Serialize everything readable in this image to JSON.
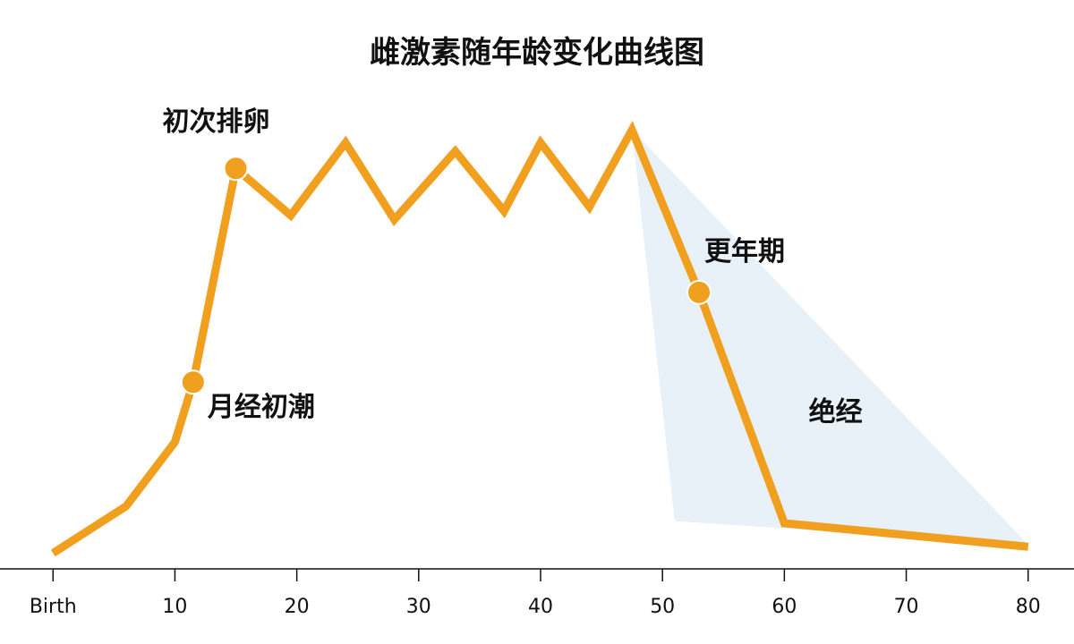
{
  "chart_data": {
    "type": "line",
    "title": "雌激素随年龄变化曲线图",
    "xlabel": "",
    "ylabel": "",
    "xlim": [
      -2,
      82
    ],
    "ylim": [
      0,
      100
    ],
    "x_ticks": [
      0,
      10,
      20,
      30,
      40,
      50,
      60,
      70,
      80
    ],
    "x_tick_labels": [
      "Birth",
      "10",
      "20",
      "30",
      "40",
      "50",
      "60",
      "70",
      "80"
    ],
    "grid": false,
    "series": [
      {
        "name": "",
        "color": "#F0A01E",
        "points": [
          {
            "x": 0,
            "y": 2
          },
          {
            "x": 6,
            "y": 13
          },
          {
            "x": 10,
            "y": 28
          },
          {
            "x": 11.5,
            "y": 42
          },
          {
            "x": 15,
            "y": 92
          },
          {
            "x": 19.5,
            "y": 81
          },
          {
            "x": 24,
            "y": 98
          },
          {
            "x": 28,
            "y": 80
          },
          {
            "x": 33,
            "y": 96
          },
          {
            "x": 37,
            "y": 82
          },
          {
            "x": 40,
            "y": 98
          },
          {
            "x": 44,
            "y": 83
          },
          {
            "x": 47.5,
            "y": 101
          },
          {
            "x": 53,
            "y": 63
          },
          {
            "x": 60,
            "y": 9
          },
          {
            "x": 80,
            "y": 3.5
          }
        ]
      }
    ],
    "shaded_region": {
      "color": "#E8F0F8",
      "points": [
        {
          "x": 47.5,
          "y": 101
        },
        {
          "x": 51,
          "y": 9.5
        },
        {
          "x": 80,
          "y": 4
        }
      ]
    },
    "markers": [
      {
        "x": 11.5,
        "y": 42,
        "label": "月经初潮",
        "label_side": "lower-right"
      },
      {
        "x": 15,
        "y": 92,
        "label": "初次排卵",
        "label_side": "above"
      },
      {
        "x": 53,
        "y": 63,
        "label": "更年期",
        "label_side": "upper-right"
      }
    ],
    "annotations": [
      {
        "x": 62,
        "y": 33,
        "text": "绝经"
      }
    ]
  }
}
